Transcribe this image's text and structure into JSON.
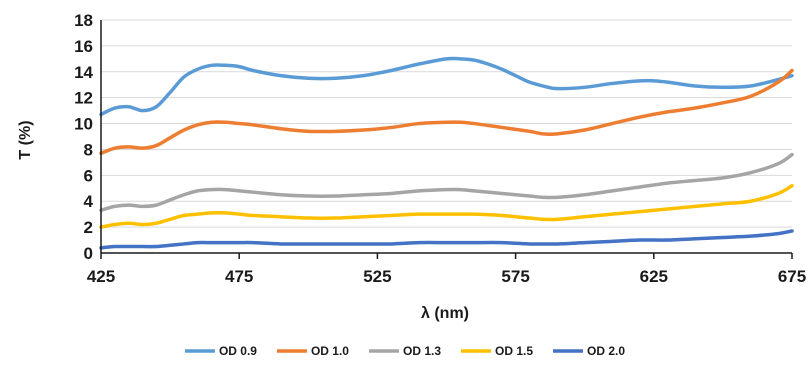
{
  "chart_data": {
    "type": "line",
    "title": "",
    "xlabel": "λ (nm)",
    "ylabel": "T (%)",
    "xlim": [
      425,
      675
    ],
    "ylim": [
      0,
      18
    ],
    "xticks": [
      425,
      475,
      525,
      575,
      625,
      675
    ],
    "yticks": [
      0,
      2,
      4,
      6,
      8,
      10,
      12,
      14,
      16,
      18
    ],
    "xtick_labels": [
      "425",
      "475",
      "525",
      "575",
      "625",
      "675"
    ],
    "ytick_labels": [
      "0",
      "2",
      "4",
      "6",
      "8",
      "10",
      "12",
      "14",
      "16",
      "18"
    ],
    "grid": true,
    "legend_position": "bottom",
    "series": [
      {
        "name": "OD 0.9",
        "color": "#5b9bd5",
        "x": [
          425,
          430,
          435,
          440,
          445,
          450,
          455,
          460,
          465,
          470,
          475,
          480,
          490,
          500,
          510,
          520,
          530,
          540,
          550,
          555,
          560,
          565,
          570,
          575,
          580,
          585,
          590,
          600,
          610,
          620,
          625,
          630,
          640,
          650,
          660,
          670,
          675
        ],
        "y": [
          10.7,
          11.2,
          11.3,
          11.0,
          11.3,
          12.4,
          13.6,
          14.2,
          14.5,
          14.5,
          14.4,
          14.1,
          13.7,
          13.5,
          13.5,
          13.7,
          14.1,
          14.6,
          15.0,
          15.0,
          14.9,
          14.6,
          14.2,
          13.7,
          13.2,
          12.9,
          12.7,
          12.8,
          13.1,
          13.3,
          13.3,
          13.2,
          12.9,
          12.8,
          12.9,
          13.4,
          13.7
        ]
      },
      {
        "name": "OD 1.0",
        "color": "#ed7d31",
        "x": [
          425,
          430,
          435,
          440,
          445,
          450,
          455,
          460,
          465,
          470,
          475,
          480,
          490,
          500,
          510,
          520,
          530,
          540,
          550,
          555,
          560,
          570,
          580,
          585,
          590,
          600,
          610,
          620,
          630,
          640,
          650,
          660,
          670,
          675
        ],
        "y": [
          7.7,
          8.1,
          8.2,
          8.1,
          8.3,
          8.9,
          9.5,
          9.9,
          10.1,
          10.1,
          10.0,
          9.9,
          9.6,
          9.4,
          9.4,
          9.5,
          9.7,
          10.0,
          10.1,
          10.1,
          10.0,
          9.7,
          9.4,
          9.2,
          9.2,
          9.5,
          10.0,
          10.5,
          10.9,
          11.2,
          11.6,
          12.1,
          13.2,
          14.1
        ]
      },
      {
        "name": "OD 1.3",
        "color": "#a5a5a5",
        "x": [
          425,
          430,
          435,
          440,
          445,
          450,
          455,
          460,
          465,
          470,
          475,
          480,
          490,
          500,
          510,
          520,
          530,
          540,
          550,
          555,
          560,
          570,
          580,
          585,
          590,
          600,
          610,
          620,
          630,
          640,
          650,
          660,
          670,
          675
        ],
        "y": [
          3.3,
          3.6,
          3.7,
          3.6,
          3.7,
          4.1,
          4.5,
          4.8,
          4.9,
          4.9,
          4.8,
          4.7,
          4.5,
          4.4,
          4.4,
          4.5,
          4.6,
          4.8,
          4.9,
          4.9,
          4.8,
          4.6,
          4.4,
          4.3,
          4.3,
          4.5,
          4.8,
          5.1,
          5.4,
          5.6,
          5.8,
          6.2,
          6.9,
          7.6
        ]
      },
      {
        "name": "OD 1.5",
        "color": "#ffc000",
        "x": [
          425,
          430,
          435,
          440,
          445,
          450,
          455,
          460,
          465,
          470,
          475,
          480,
          490,
          500,
          510,
          520,
          530,
          540,
          550,
          555,
          560,
          570,
          580,
          585,
          590,
          600,
          610,
          620,
          630,
          640,
          650,
          660,
          670,
          675
        ],
        "y": [
          2.0,
          2.2,
          2.3,
          2.2,
          2.3,
          2.6,
          2.9,
          3.0,
          3.1,
          3.1,
          3.0,
          2.9,
          2.8,
          2.7,
          2.7,
          2.8,
          2.9,
          3.0,
          3.0,
          3.0,
          3.0,
          2.9,
          2.7,
          2.6,
          2.6,
          2.8,
          3.0,
          3.2,
          3.4,
          3.6,
          3.8,
          4.0,
          4.6,
          5.2
        ]
      },
      {
        "name": "OD 2.0",
        "color": "#4472c4",
        "x": [
          425,
          430,
          435,
          440,
          445,
          450,
          455,
          460,
          465,
          470,
          475,
          480,
          490,
          500,
          510,
          520,
          530,
          540,
          550,
          555,
          560,
          570,
          580,
          585,
          590,
          600,
          610,
          620,
          630,
          640,
          650,
          660,
          670,
          675
        ],
        "y": [
          0.4,
          0.5,
          0.5,
          0.5,
          0.5,
          0.6,
          0.7,
          0.8,
          0.8,
          0.8,
          0.8,
          0.8,
          0.7,
          0.7,
          0.7,
          0.7,
          0.7,
          0.8,
          0.8,
          0.8,
          0.8,
          0.8,
          0.7,
          0.7,
          0.7,
          0.8,
          0.9,
          1.0,
          1.0,
          1.1,
          1.2,
          1.3,
          1.5,
          1.7
        ]
      }
    ]
  }
}
